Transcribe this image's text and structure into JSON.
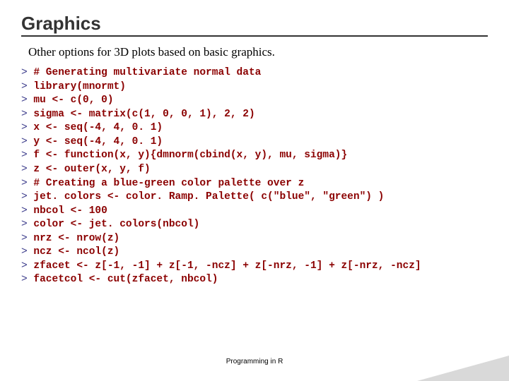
{
  "title": "Graphics",
  "subtitle": "Other options for 3D plots based on basic graphics.",
  "prompt_char": ">",
  "code_color": "#8b0000",
  "prompt_color": "#3a3a8a",
  "code_lines": [
    "# Generating multivariate normal data",
    "library(mnormt)",
    "mu <- c(0, 0)",
    "sigma <- matrix(c(1, 0, 0, 1), 2, 2)",
    "x <- seq(-4, 4, 0. 1)",
    "y <- seq(-4, 4, 0. 1)",
    "f <- function(x, y){dmnorm(cbind(x, y), mu, sigma)}",
    "z <- outer(x, y, f)",
    "# Creating a blue-green color palette over z",
    "jet. colors <- color. Ramp. Palette( c(\"blue\", \"green\") )",
    "nbcol <- 100",
    "color <- jet. colors(nbcol)",
    "nrz <- nrow(z)",
    "ncz <- ncol(z)",
    "zfacet <- z[-1, -1] + z[-1, -ncz] + z[-nrz, -1] + z[-nrz, -ncz]",
    "facetcol <- cut(zfacet, nbcol)"
  ],
  "footer": "Programming in R",
  "style": {
    "title_fontsize": 26,
    "title_color": "#333333",
    "subtitle_fontsize": 17,
    "code_fontsize": 14.5,
    "background": "#ffffff",
    "wedge_color": "#d9d9d9",
    "footer_fontsize": 10
  }
}
